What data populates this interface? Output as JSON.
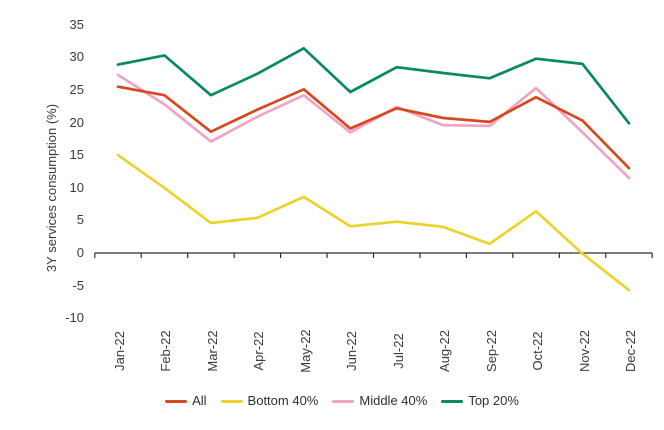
{
  "chart_data": {
    "type": "line",
    "title": "",
    "xlabel": "",
    "ylabel": "3Y services consumption (%)",
    "categories": [
      "Jan-22",
      "Feb-22",
      "Mar-22",
      "Apr-22",
      "May-22",
      "Jun-22",
      "Jul-22",
      "Aug-22",
      "Sep-22",
      "Oct-22",
      "Nov-22",
      "Dec-22"
    ],
    "series": [
      {
        "name": "All",
        "color": "#d7481f",
        "values": [
          25.5,
          24.2,
          18.6,
          22.0,
          25.1,
          19.1,
          22.2,
          20.7,
          20.1,
          23.9,
          20.3,
          13.0
        ]
      },
      {
        "name": "Bottom 40%",
        "color": "#eed22c",
        "values": [
          15.0,
          10.0,
          4.6,
          5.4,
          8.6,
          4.1,
          4.8,
          4.0,
          1.4,
          6.4,
          -0.1,
          -5.7
        ]
      },
      {
        "name": "Middle 40%",
        "color": "#f0a3c3",
        "values": [
          27.3,
          22.8,
          17.1,
          20.9,
          24.2,
          18.5,
          22.4,
          19.6,
          19.5,
          25.3,
          18.5,
          11.5
        ]
      },
      {
        "name": "Top 20%",
        "color": "#078a5e",
        "values": [
          28.9,
          30.3,
          24.2,
          27.5,
          31.4,
          24.7,
          28.5,
          27.6,
          26.8,
          29.8,
          29.0,
          19.9
        ]
      }
    ],
    "y_ticks": [
      35,
      30,
      25,
      20,
      15,
      10,
      5,
      0,
      -5,
      -10
    ],
    "ylim": [
      -10,
      35
    ],
    "grid": false,
    "legend_position": "bottom",
    "colors": {
      "axis": "#2e2e2e",
      "text": "#3a3a3a",
      "background": "#ffffff"
    }
  }
}
